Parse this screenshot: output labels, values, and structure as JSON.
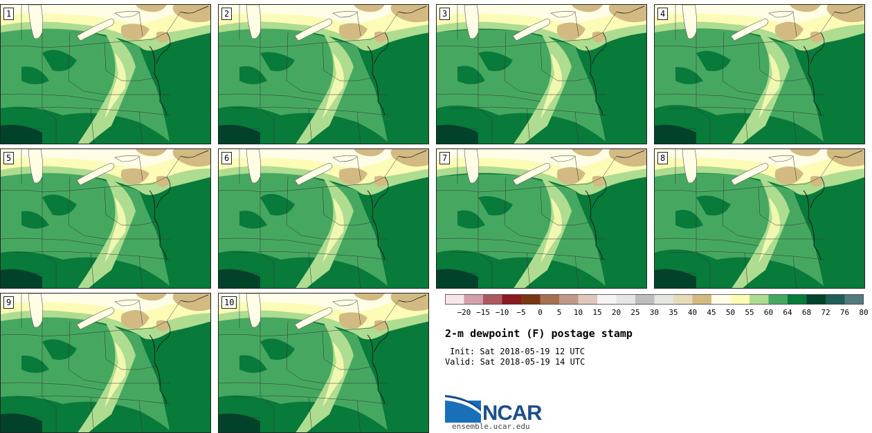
{
  "panels": [
    {
      "label": "1"
    },
    {
      "label": "2"
    },
    {
      "label": "3"
    },
    {
      "label": "4"
    },
    {
      "label": "5"
    },
    {
      "label": "6"
    },
    {
      "label": "7"
    },
    {
      "label": "8"
    },
    {
      "label": "9"
    },
    {
      "label": "10"
    }
  ],
  "colorbar": {
    "colors": [
      "#f6e6ea",
      "#d2a0aa",
      "#b05860",
      "#8a1a22",
      "#7a3612",
      "#a87050",
      "#c09a88",
      "#e0c8bc",
      "#f6f4f6",
      "#e6e6e6",
      "#bdbdbd",
      "#e6e6e0",
      "#e6dcbc",
      "#d2ba82",
      "#fffde6",
      "#fcfcb6",
      "#aedc90",
      "#46a860",
      "#087a3a",
      "#00422a",
      "#1f5e58",
      "#527a80"
    ],
    "ticks": [
      "−20",
      "−15",
      "−10",
      "−5",
      "0",
      "5",
      "10",
      "15",
      "20",
      "25",
      "30",
      "35",
      "40",
      "45",
      "50",
      "55",
      "60",
      "64",
      "68",
      "72",
      "76",
      "80"
    ]
  },
  "title": "2-m dewpoint (F) postage stamp",
  "init": "Init: Sat 2018-05-19 12 UTC",
  "valid": "Valid: Sat 2018-05-19 14 UTC",
  "logo": {
    "name": "ncar-logo-icon",
    "text": "NCAR"
  },
  "website": "ensemble.ucar.edu"
}
